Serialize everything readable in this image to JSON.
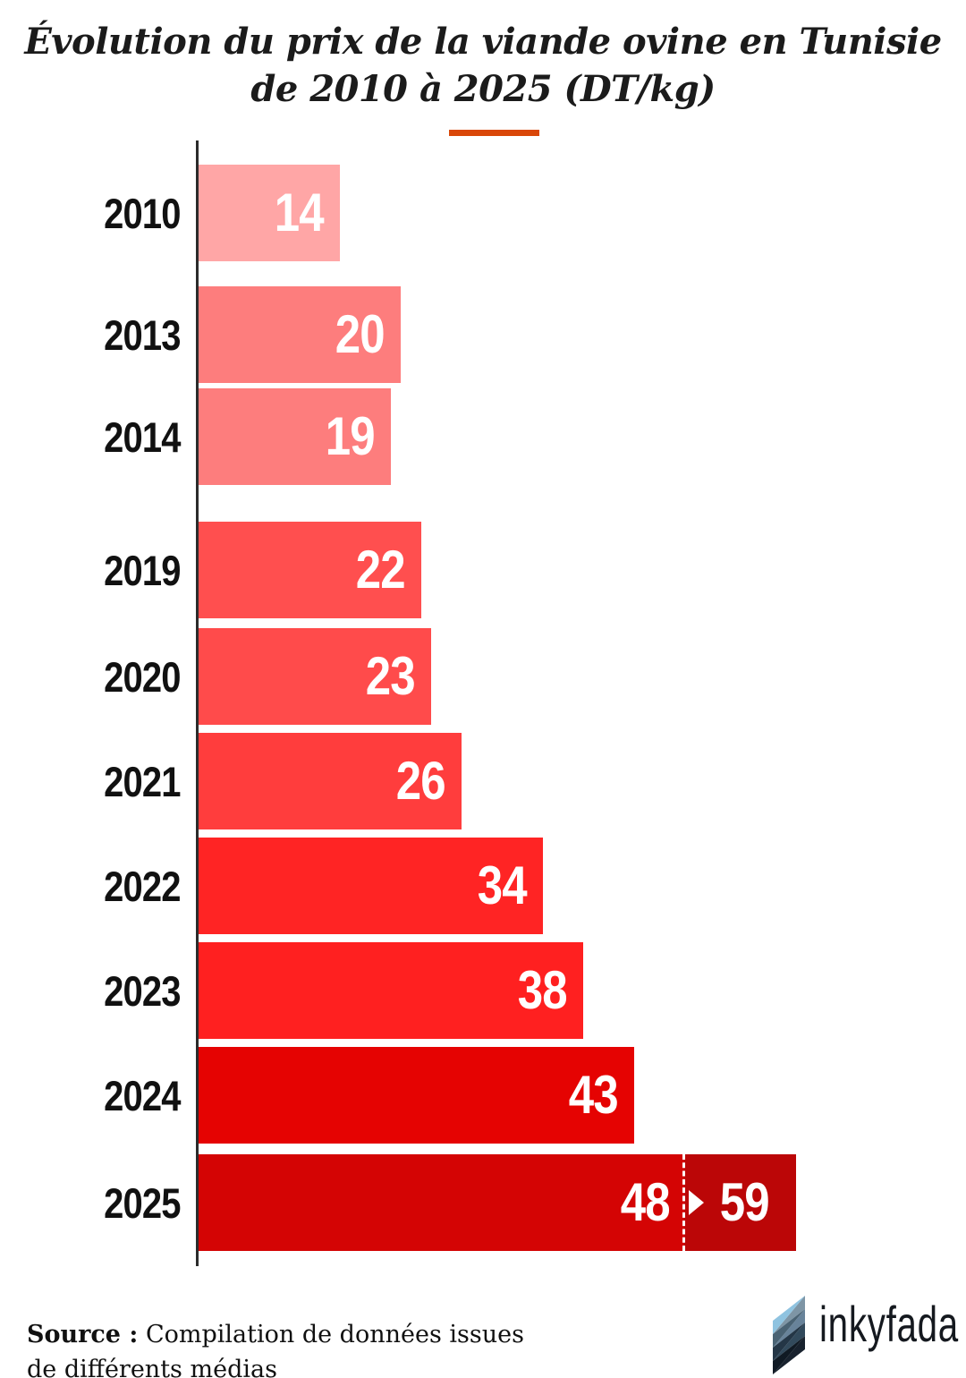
{
  "title": {
    "line1": "Évolution du prix de la viande ovine en Tunisie",
    "line2": "de 2010 à 2025 (DT/kg)"
  },
  "accent_color": "#d94708",
  "axis_color": "#2b2b2b",
  "chart_data": {
    "type": "bar",
    "orientation": "horizontal",
    "title": "Évolution du prix de la viande ovine en Tunisie de 2010 à 2025 (DT/kg)",
    "unit": "DT/kg",
    "xlim": [
      0,
      59
    ],
    "grid": false,
    "categories": [
      "2010",
      "2013",
      "2014",
      "2019",
      "2020",
      "2021",
      "2022",
      "2023",
      "2024",
      "2025"
    ],
    "values": [
      14,
      20,
      19,
      22,
      23,
      26,
      34,
      38,
      43,
      48
    ],
    "bars": [
      {
        "year": "2010",
        "value": 14,
        "label": "14",
        "color": "#ffa6a6"
      },
      {
        "year": "2013",
        "value": 20,
        "label": "20",
        "color": "#fd7d7d"
      },
      {
        "year": "2014",
        "value": 19,
        "label": "19",
        "color": "#fd7d7d"
      },
      {
        "year": "2019",
        "value": 22,
        "label": "22",
        "color": "#ff4f4f"
      },
      {
        "year": "2020",
        "value": 23,
        "label": "23",
        "color": "#ff4b4b"
      },
      {
        "year": "2021",
        "value": 26,
        "label": "26",
        "color": "#ff3d3d"
      },
      {
        "year": "2022",
        "value": 34,
        "label": "34",
        "color": "#ff2424"
      },
      {
        "year": "2023",
        "value": 38,
        "label": "38",
        "color": "#ff2020"
      },
      {
        "year": "2024",
        "value": 43,
        "label": "43",
        "color": "#e50302"
      },
      {
        "year": "2025",
        "value": 48,
        "label": "48",
        "value2": 59,
        "label2": "59",
        "color": "#d40404",
        "color2": "#bb0607"
      }
    ],
    "annotation_2025": "48 → 59"
  },
  "source": {
    "label": "Source :",
    "text": " Compilation de données issues de différents médias",
    "line1": " Compilation de données issues",
    "line2": "de différents médias"
  },
  "logo": {
    "text": "inkyfada",
    "diamond_colors": [
      "#7e95a5",
      "#8fc3e0",
      "#68839a",
      "#4a6374",
      "#324a5c",
      "#243646",
      "#18222e",
      "#101a24"
    ]
  }
}
